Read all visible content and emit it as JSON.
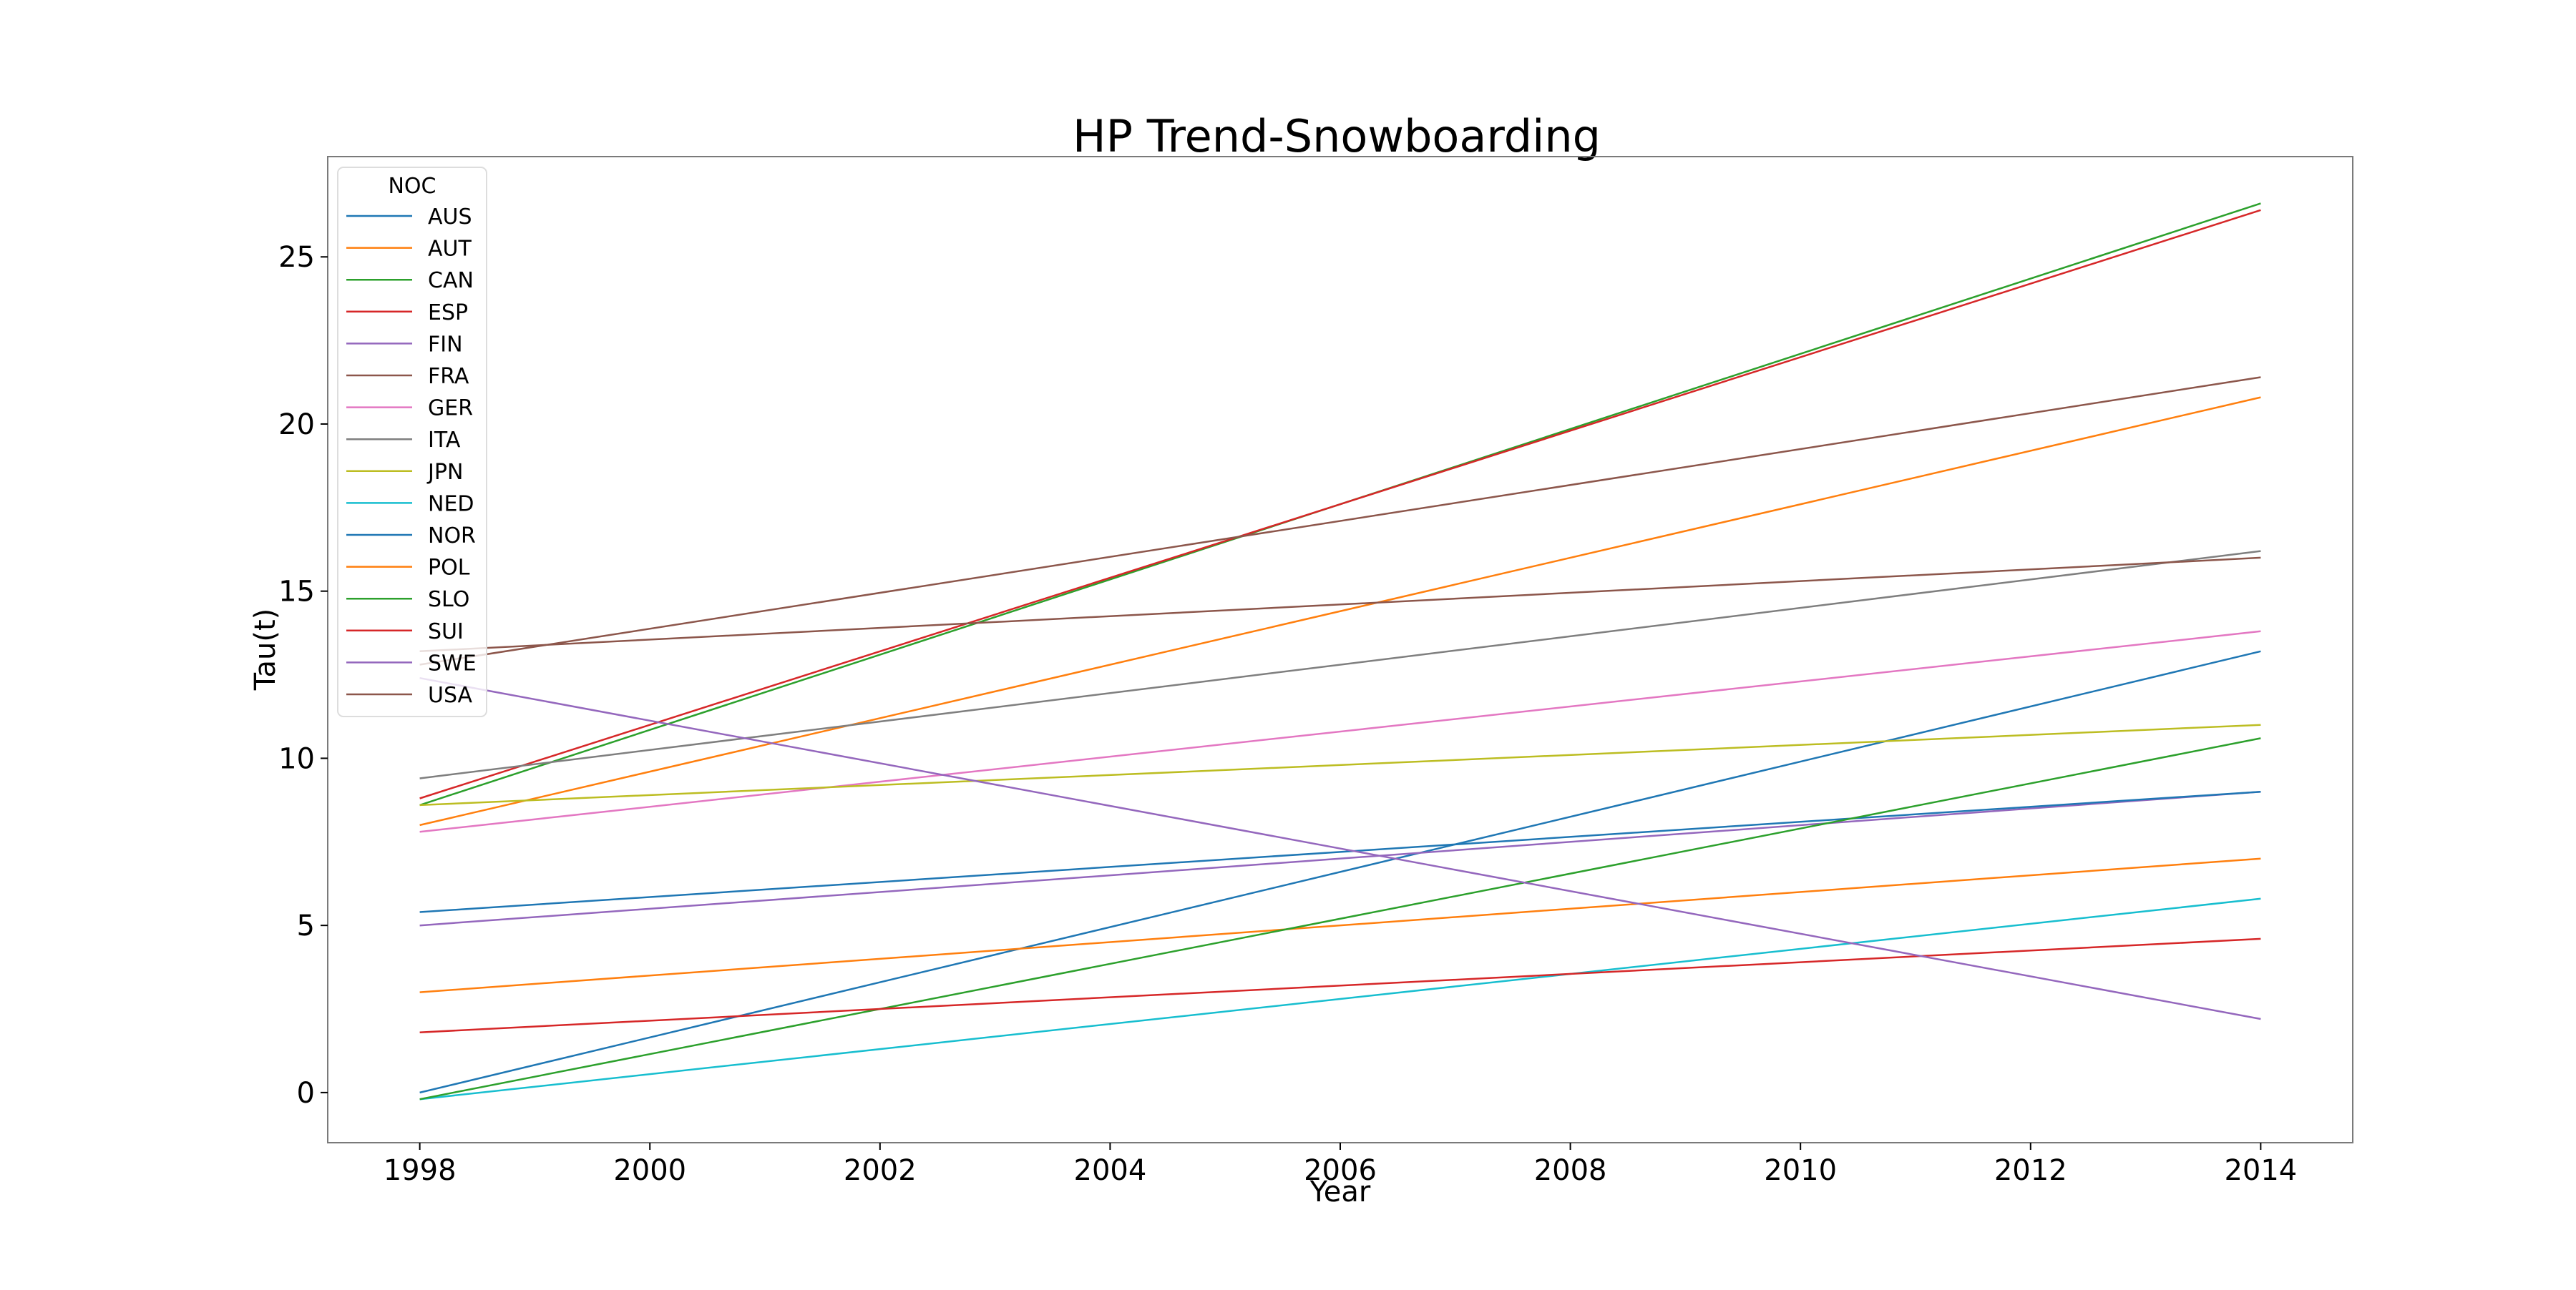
{
  "chart_data": {
    "type": "line",
    "title": "HP Trend-Snowboarding",
    "xlabel": "Year",
    "ylabel": "Tau(t)",
    "xlim": [
      1997.2,
      2014.8
    ],
    "ylim": [
      -1.5,
      28
    ],
    "xticks": [
      1998,
      2000,
      2002,
      2004,
      2006,
      2008,
      2010,
      2012,
      2014
    ],
    "yticks": [
      0,
      5,
      10,
      15,
      20,
      25
    ],
    "grid": false,
    "legend": {
      "title": "NOC",
      "placement": "top-left"
    },
    "x": [
      1998,
      2014
    ],
    "series": [
      {
        "name": "AUS",
        "color": "#1f77b4",
        "values": [
          0.0,
          13.2
        ]
      },
      {
        "name": "AUT",
        "color": "#ff7f0e",
        "values": [
          8.0,
          20.8
        ]
      },
      {
        "name": "CAN",
        "color": "#2ca02c",
        "values": [
          8.6,
          26.6
        ]
      },
      {
        "name": "ESP",
        "color": "#d62728",
        "values": [
          8.8,
          26.4
        ]
      },
      {
        "name": "FIN",
        "color": "#9467bd",
        "values": [
          5.0,
          9.0
        ]
      },
      {
        "name": "FRA",
        "color": "#8c564b",
        "values": [
          12.8,
          21.4
        ]
      },
      {
        "name": "GER",
        "color": "#e377c2",
        "values": [
          7.8,
          13.8
        ]
      },
      {
        "name": "ITA",
        "color": "#7f7f7f",
        "values": [
          9.4,
          16.2
        ]
      },
      {
        "name": "JPN",
        "color": "#bcbd22",
        "values": [
          8.6,
          11.0
        ]
      },
      {
        "name": "NED",
        "color": "#17becf",
        "values": [
          -0.2,
          5.8
        ]
      },
      {
        "name": "NOR",
        "color": "#1f77b4",
        "values": [
          5.4,
          9.0
        ]
      },
      {
        "name": "POL",
        "color": "#ff7f0e",
        "values": [
          3.0,
          7.0
        ]
      },
      {
        "name": "SLO",
        "color": "#2ca02c",
        "values": [
          -0.2,
          10.6
        ]
      },
      {
        "name": "SUI",
        "color": "#d62728",
        "values": [
          1.8,
          4.6
        ]
      },
      {
        "name": "SWE",
        "color": "#9467bd",
        "values": [
          12.4,
          2.2
        ]
      },
      {
        "name": "USA",
        "color": "#8c564b",
        "values": [
          13.2,
          16.0
        ]
      }
    ]
  }
}
